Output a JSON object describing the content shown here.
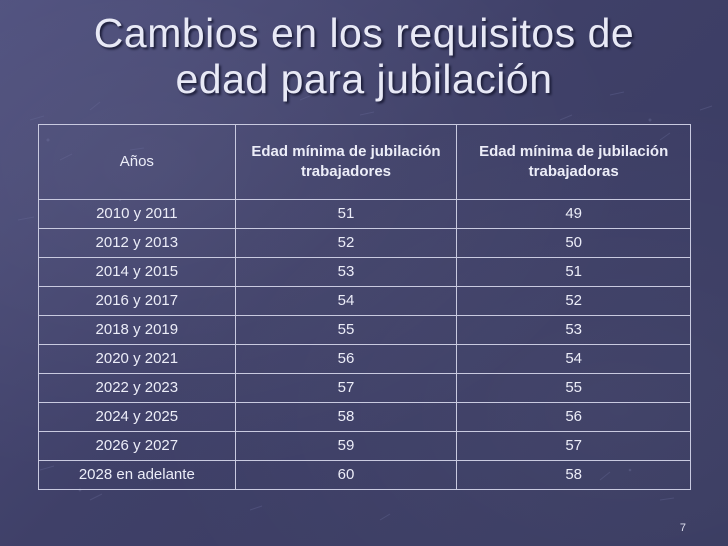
{
  "slide": {
    "title_line1": "Cambios en los requisitos de",
    "title_line2": "edad para jubilación",
    "page_number": "7"
  },
  "table": {
    "headers": [
      "Años",
      "Edad mínima de jubilación trabajadores",
      "Edad mínima de jubilación trabajadoras"
    ],
    "rows": [
      [
        "2010 y 2011",
        "51",
        "49"
      ],
      [
        "2012 y 2013",
        "52",
        "50"
      ],
      [
        "2014 y 2015",
        "53",
        "51"
      ],
      [
        "2016 y 2017",
        "54",
        "52"
      ],
      [
        "2018 y 2019",
        "55",
        "53"
      ],
      [
        "2020 y 2021",
        "56",
        "54"
      ],
      [
        "2022 y 2023",
        "57",
        "55"
      ],
      [
        "2024 y 2025",
        "58",
        "56"
      ],
      [
        "2026 y 2027",
        "59",
        "57"
      ],
      [
        "2028 en adelante",
        "60",
        "58"
      ]
    ]
  }
}
